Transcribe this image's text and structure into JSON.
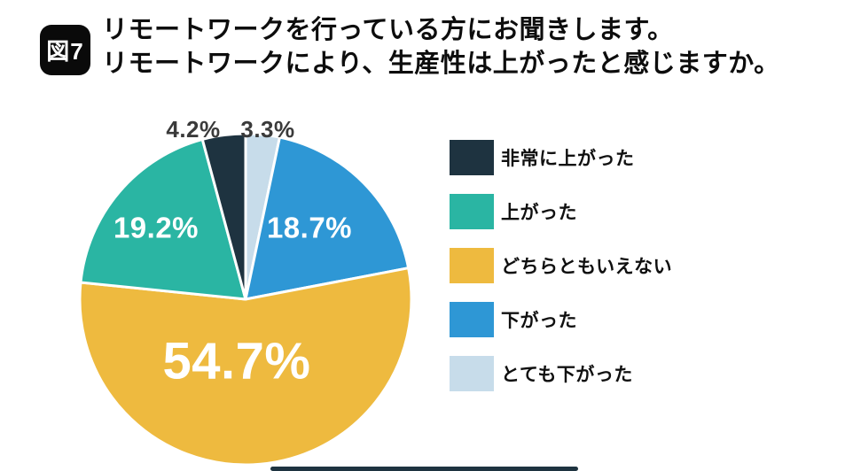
{
  "figure": {
    "badge": "図7",
    "title_line1": "リモートワークを行っている方にお聞きします。",
    "title_line2": "リモートワークにより、生産性は上がったと感じますか。"
  },
  "chart_data": {
    "type": "pie",
    "title": "リモートワークを行っている方にお聞きします。リモートワークにより、生産性は上がったと感じますか。",
    "categories": [
      "非常に上がった",
      "上がった",
      "どちらともいえない",
      "下がった",
      "とても下がった"
    ],
    "values": [
      4.2,
      19.2,
      54.7,
      18.7,
      3.3
    ],
    "labels": [
      "4.2%",
      "19.2%",
      "54.7%",
      "18.7%",
      "3.3%"
    ],
    "colors": [
      "#1e3340",
      "#2ab5a3",
      "#eeba3f",
      "#2e97d5",
      "#c7dcea"
    ],
    "label_text_colors": {
      "outside": "#3a3a3a",
      "inside": "#ffffff"
    },
    "legend_position": "right",
    "start_angle": "12 o'clock",
    "draw_order": "clockwise from top: とても下がった, 下がった, どちらともいえない, 上がった, 非常に上がった"
  }
}
